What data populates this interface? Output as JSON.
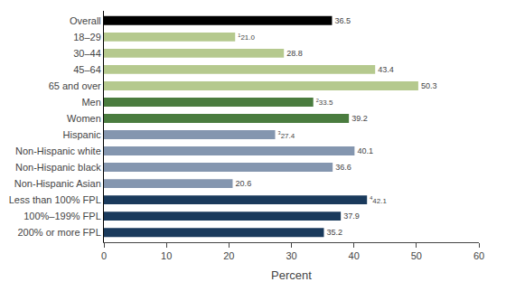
{
  "chart_data": {
    "type": "bar",
    "orientation": "horizontal",
    "categories": [
      "200% or more FPL",
      "100%–199% FPL",
      "Less than 100% FPL",
      "Non-Hispanic Asian",
      "Non-Hispanic black",
      "Non-Hispanic white",
      "Hispanic",
      "Women",
      "Men",
      "65 and over",
      "45–64",
      "30–44",
      "18–29",
      "Overall"
    ],
    "values": [
      35.2,
      37.9,
      42.1,
      20.6,
      36.6,
      40.1,
      27.4,
      39.2,
      33.5,
      50.3,
      43.4,
      28.8,
      21.0,
      36.5
    ],
    "value_labels": [
      "35.2",
      "37.9",
      "42.1",
      "20.6",
      "36.6",
      "40.1",
      "27.4",
      "39.2",
      "33.5",
      "50.3",
      "43.4",
      "28.8",
      "21.0",
      "36.5"
    ],
    "superscripts": [
      null,
      null,
      "4",
      null,
      null,
      null,
      "3",
      null,
      "2",
      null,
      null,
      null,
      "1",
      null
    ],
    "colors": [
      "#1a3a5c",
      "#1a3a5c",
      "#1a3a5c",
      "#8496af",
      "#8496af",
      "#8496af",
      "#8496af",
      "#4a7c3f",
      "#4a7c3f",
      "#b5c98e",
      "#b5c98e",
      "#b5c98e",
      "#b5c98e",
      "#000000"
    ],
    "xlabel": "Percent",
    "xlim": [
      0,
      60
    ],
    "xticks": [
      0,
      10,
      20,
      30,
      40,
      50,
      60
    ],
    "data_labels": true,
    "grid": false
  }
}
